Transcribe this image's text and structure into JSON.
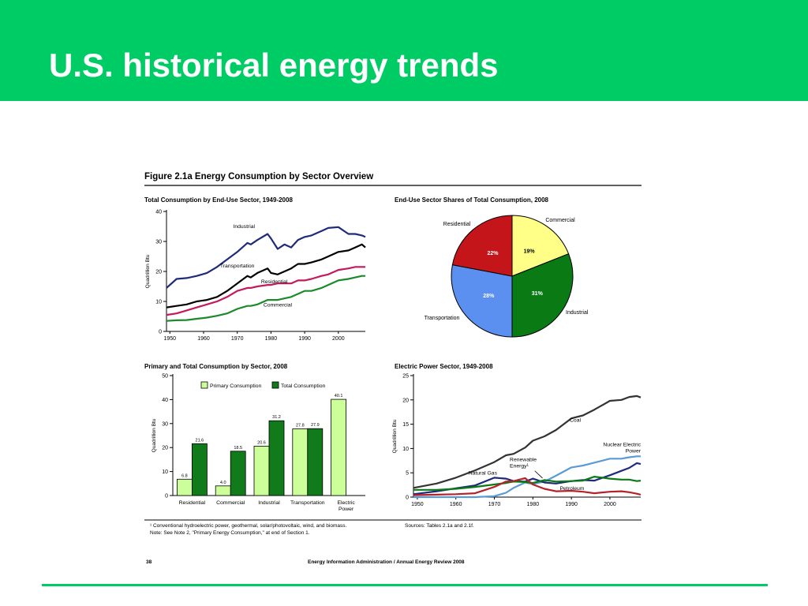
{
  "slide": {
    "title": "U.S. historical energy trends",
    "colors": {
      "header_green": "#00cc66",
      "rule_green": "#00cc66"
    }
  },
  "figure": {
    "title": "Figure 2.1a  Energy Consumption by Sector Overview",
    "footnote": "¹ Conventional hydroelectric power, geothermal, solar/photovoltaic, wind, and biomass.",
    "note": "Note:  See Note 2, \"Primary Energy Consumption,\" at end of Section 1.",
    "sources": "Sources:  Tables 2.1a and 2.1f.",
    "page_number": "38",
    "publisher": "Energy Information Administration / Annual Energy Review 2008"
  },
  "chart_data": [
    {
      "type": "line",
      "title": "Total Consumption by End-Use Sector, 1949-2008",
      "ylabel": "Quadrillion Btu",
      "xlim": [
        1949,
        2008
      ],
      "ylim": [
        0,
        40
      ],
      "x_ticks": [
        "1950",
        "1960",
        "1970",
        "1980",
        "1990",
        "2000"
      ],
      "y_ticks": [
        "0",
        "10",
        "20",
        "30",
        "40"
      ],
      "x": [
        1949,
        1952,
        1955,
        1958,
        1961,
        1964,
        1967,
        1970,
        1973,
        1974,
        1976,
        1979,
        1980,
        1982,
        1984,
        1986,
        1988,
        1990,
        1992,
        1995,
        1997,
        2000,
        2003,
        2005,
        2007,
        2008
      ],
      "series": [
        {
          "name": "Industrial",
          "color": "#1f2a7a",
          "values": [
            14.5,
            17.5,
            17.8,
            18.5,
            19.5,
            21.5,
            24.0,
            26.5,
            29.5,
            29.0,
            30.5,
            32.5,
            31.0,
            27.5,
            29.0,
            28.0,
            30.5,
            31.5,
            32.0,
            33.5,
            34.5,
            34.8,
            32.5,
            32.5,
            32.0,
            31.5
          ]
        },
        {
          "name": "Transportation",
          "color": "#000000",
          "values": [
            8.0,
            8.5,
            9.0,
            10.0,
            10.5,
            11.5,
            13.5,
            16.0,
            18.5,
            18.0,
            19.5,
            21.0,
            19.5,
            19.0,
            20.0,
            21.0,
            22.5,
            22.5,
            23.0,
            24.0,
            25.0,
            26.5,
            27.0,
            28.0,
            29.0,
            28.0
          ]
        },
        {
          "name": "Residential",
          "color": "#c4195e",
          "values": [
            5.5,
            6.0,
            7.0,
            8.0,
            9.0,
            10.0,
            11.5,
            13.5,
            14.5,
            14.5,
            15.0,
            15.5,
            15.5,
            16.0,
            16.0,
            16.0,
            17.0,
            17.0,
            17.5,
            18.5,
            19.0,
            20.5,
            21.0,
            21.5,
            21.5,
            21.5
          ]
        },
        {
          "name": "Commercial",
          "color": "#1a8a2a",
          "values": [
            3.5,
            3.7,
            3.8,
            4.2,
            4.6,
            5.2,
            6.0,
            7.5,
            8.5,
            8.5,
            9.0,
            10.5,
            10.5,
            10.5,
            11.0,
            11.5,
            12.5,
            13.5,
            13.5,
            14.5,
            15.5,
            17.0,
            17.5,
            18.0,
            18.5,
            18.5
          ]
        }
      ]
    },
    {
      "type": "pie",
      "title": "End-Use Sector Shares of Total Consumption, 2008",
      "slices": [
        {
          "label": "Commercial",
          "value": 19,
          "value_label": "19%",
          "color": "#ffff88"
        },
        {
          "label": "Industrial",
          "value": 31,
          "value_label": "31%",
          "color": "#0a7a14"
        },
        {
          "label": "Transportation",
          "value": 28,
          "value_label": "28%",
          "color": "#5b8ff0"
        },
        {
          "label": "Residential",
          "value": 22,
          "value_label": "22%",
          "color": "#c4151a"
        }
      ]
    },
    {
      "type": "bar",
      "title": "Primary and Total Consumption by Sector, 2008",
      "ylabel": "Quadrillion Btu",
      "ylim": [
        0,
        50
      ],
      "y_ticks": [
        "0",
        "10",
        "20",
        "30",
        "40",
        "50"
      ],
      "categories": [
        "Residential",
        "Commercial",
        "Industrial",
        "Transportation",
        "Electric\nPower"
      ],
      "series": [
        {
          "name": "Primary Consumption",
          "color": "#ccff99",
          "values": [
            6.8,
            4.0,
            20.6,
            27.8,
            40.1
          ],
          "value_labels": [
            "6.8",
            "4.0",
            "20.6",
            "27.8",
            "40.1"
          ]
        },
        {
          "name": "Total Consumption",
          "color": "#117a1a",
          "values": [
            21.6,
            18.5,
            31.2,
            27.9,
            null
          ],
          "value_labels": [
            "21.6",
            "18.5",
            "31.2",
            "27.9",
            ""
          ]
        }
      ]
    },
    {
      "type": "line",
      "title": "Electric Power Sector, 1949-2008",
      "ylabel": "Quadrillion Btu",
      "xlim": [
        1949,
        2008
      ],
      "ylim": [
        0,
        25
      ],
      "x_ticks": [
        "1950",
        "1960",
        "1970",
        "1980",
        "1990",
        "2000"
      ],
      "y_ticks": [
        "0",
        "5",
        "10",
        "15",
        "20",
        "25"
      ],
      "x": [
        1949,
        1955,
        1960,
        1965,
        1970,
        1973,
        1975,
        1978,
        1980,
        1983,
        1986,
        1990,
        1993,
        1996,
        2000,
        2003,
        2005,
        2007,
        2008
      ],
      "series": [
        {
          "name": "Coal",
          "color": "#333333",
          "values": [
            1.9,
            2.8,
            4.0,
            5.5,
            7.2,
            8.6,
            8.9,
            10.2,
            11.6,
            12.5,
            13.8,
            16.2,
            16.8,
            18.0,
            19.8,
            20.0,
            20.6,
            20.8,
            20.5
          ]
        },
        {
          "name": "Nuclear Electric Power",
          "color": "#5b9bd5",
          "values": [
            0,
            0,
            0,
            0,
            0.2,
            0.9,
            1.9,
            3.0,
            2.7,
            3.2,
            4.4,
            6.1,
            6.5,
            7.1,
            7.9,
            7.9,
            8.2,
            8.4,
            8.4
          ]
        },
        {
          "name": "Natural Gas",
          "color": "#1f2a7a",
          "values": [
            0.6,
            1.2,
            1.8,
            2.4,
            4.0,
            3.8,
            3.3,
            3.2,
            3.8,
            3.0,
            2.8,
            3.3,
            3.5,
            3.4,
            4.5,
            5.4,
            6.0,
            7.0,
            6.8
          ]
        },
        {
          "name": "Renewable Energy¹",
          "color": "#0a7a14",
          "values": [
            1.5,
            1.5,
            1.7,
            2.1,
            2.6,
            2.9,
            3.2,
            3.1,
            2.9,
            3.5,
            3.2,
            3.3,
            3.4,
            4.2,
            3.8,
            3.6,
            3.6,
            3.3,
            3.4
          ]
        },
        {
          "name": "Petroleum",
          "color": "#b5232a",
          "values": [
            0.4,
            0.5,
            0.6,
            0.8,
            2.1,
            3.2,
            3.3,
            3.9,
            2.6,
            1.7,
            1.2,
            1.3,
            1.1,
            0.8,
            1.1,
            1.2,
            1.0,
            0.7,
            0.5
          ]
        }
      ]
    }
  ]
}
